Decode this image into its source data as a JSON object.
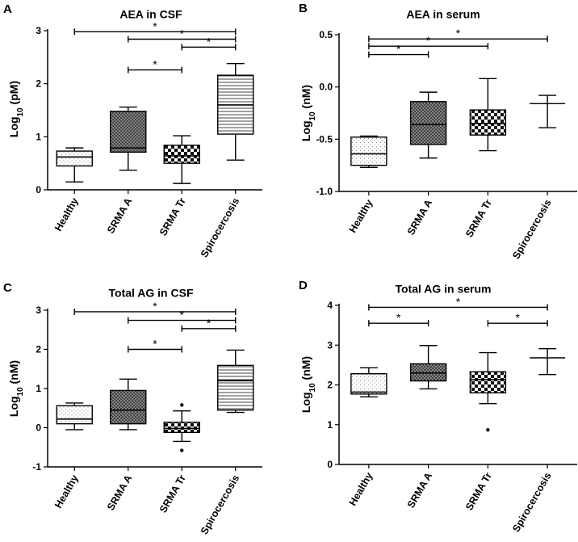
{
  "chart_data": [
    {
      "panel": "A",
      "type": "box",
      "title": "AEA in CSF",
      "ylabel_main": "Log",
      "ylabel_sub": "10",
      "ylabel_unit": " (pM)",
      "ylim": [
        0,
        3
      ],
      "yticks": [
        0,
        1,
        2,
        3
      ],
      "categories": [
        "Healthy",
        "SRMA A",
        "SRMA Tr",
        "Spirocercosis"
      ],
      "boxes": [
        {
          "min": 0.15,
          "q1": 0.45,
          "median": 0.62,
          "q3": 0.73,
          "max": 0.79,
          "outliers": []
        },
        {
          "min": 0.37,
          "q1": 0.71,
          "median": 0.79,
          "q3": 1.48,
          "max": 1.56,
          "outliers": []
        },
        {
          "min": 0.12,
          "q1": 0.5,
          "median": 0.64,
          "q3": 0.84,
          "max": 1.02,
          "outliers": []
        },
        {
          "min": 0.56,
          "q1": 1.05,
          "median": 1.6,
          "q3": 2.16,
          "max": 2.38,
          "outliers": []
        }
      ],
      "significance": [
        {
          "from": 0,
          "to": 3,
          "y": 2.98,
          "label": "*"
        },
        {
          "from": 1,
          "to": 3,
          "y": 2.84,
          "label": "*"
        },
        {
          "from": 2,
          "to": 3,
          "y": 2.69,
          "label": "*"
        },
        {
          "from": 1,
          "to": 2,
          "y": 2.26,
          "label": "*"
        }
      ]
    },
    {
      "panel": "B",
      "type": "box",
      "title": "AEA in serum",
      "ylabel_main": "Log",
      "ylabel_sub": "10",
      "ylabel_unit": " (nM)",
      "ylim": [
        -1.0,
        0.5
      ],
      "yticks": [
        -1.0,
        -0.5,
        0.0,
        0.5
      ],
      "ytick_labels": [
        "-1.0",
        "-0.5",
        "0.0",
        "0.5"
      ],
      "categories": [
        "Healthy",
        "SRMA A",
        "SRMA Tr",
        "Spirocercosis"
      ],
      "boxes": [
        {
          "min": -0.77,
          "q1": -0.75,
          "median": -0.64,
          "q3": -0.48,
          "max": -0.47,
          "outliers": []
        },
        {
          "min": -0.68,
          "q1": -0.55,
          "median": -0.36,
          "q3": -0.14,
          "max": -0.05,
          "outliers": []
        },
        {
          "min": -0.61,
          "q1": -0.46,
          "median": -0.35,
          "q3": -0.22,
          "max": 0.08,
          "outliers": []
        },
        {
          "min": -0.39,
          "q1": null,
          "median": -0.16,
          "q3": null,
          "max": -0.08,
          "outliers": []
        }
      ],
      "significance": [
        {
          "from": 0,
          "to": 3,
          "y": 0.46,
          "label": "*"
        },
        {
          "from": 0,
          "to": 2,
          "y": 0.39,
          "label": "*"
        },
        {
          "from": 0,
          "to": 1,
          "y": 0.31,
          "label": "*"
        }
      ]
    },
    {
      "panel": "C",
      "type": "box",
      "title": "Total AG in CSF",
      "ylabel_main": "Log",
      "ylabel_sub": "10",
      "ylabel_unit": " (nM)",
      "ylim": [
        -1,
        3
      ],
      "yticks": [
        -1,
        0,
        1,
        2,
        3
      ],
      "categories": [
        "Healthy",
        "SRMA A",
        "SRMA Tr",
        "Spirocercosis"
      ],
      "boxes": [
        {
          "min": -0.05,
          "q1": 0.1,
          "median": 0.22,
          "q3": 0.56,
          "max": 0.63,
          "outliers": []
        },
        {
          "min": -0.05,
          "q1": 0.1,
          "median": 0.45,
          "q3": 0.95,
          "max": 1.24,
          "outliers": []
        },
        {
          "min": -0.35,
          "q1": -0.12,
          "median": -0.02,
          "q3": 0.14,
          "max": 0.43,
          "outliers": [
            0.58,
            -0.58
          ]
        },
        {
          "min": 0.39,
          "q1": 0.45,
          "median": 1.2,
          "q3": 1.59,
          "max": 1.98,
          "outliers": []
        }
      ],
      "significance": [
        {
          "from": 0,
          "to": 3,
          "y": 2.96,
          "label": "*"
        },
        {
          "from": 1,
          "to": 3,
          "y": 2.74,
          "label": "*"
        },
        {
          "from": 2,
          "to": 3,
          "y": 2.53,
          "label": "*"
        },
        {
          "from": 1,
          "to": 2,
          "y": 2.0,
          "label": "*"
        }
      ]
    },
    {
      "panel": "D",
      "type": "box",
      "title": "Total AG in serum",
      "ylabel_main": "Log",
      "ylabel_sub": "10",
      "ylabel_unit": " (nM)",
      "ylim": [
        0,
        4
      ],
      "yticks": [
        0,
        1,
        2,
        3,
        4
      ],
      "categories": [
        "Healthy",
        "SRMA A",
        "SRMA Tr",
        "Spirocercosis"
      ],
      "boxes": [
        {
          "min": 1.7,
          "q1": 1.77,
          "median": 1.82,
          "q3": 2.28,
          "max": 2.43,
          "outliers": []
        },
        {
          "min": 1.9,
          "q1": 2.1,
          "median": 2.3,
          "q3": 2.53,
          "max": 2.99,
          "outliers": []
        },
        {
          "min": 1.53,
          "q1": 1.8,
          "median": 2.13,
          "q3": 2.33,
          "max": 2.81,
          "outliers": [
            0.87
          ]
        },
        {
          "min": 2.26,
          "q1": null,
          "median": 2.68,
          "q3": null,
          "max": 2.91,
          "outliers": []
        }
      ],
      "significance": [
        {
          "from": 0,
          "to": 3,
          "y": 3.95,
          "label": "*"
        },
        {
          "from": 0,
          "to": 1,
          "y": 3.55,
          "label": "*"
        },
        {
          "from": 2,
          "to": 3,
          "y": 3.55,
          "label": "*"
        }
      ]
    }
  ]
}
